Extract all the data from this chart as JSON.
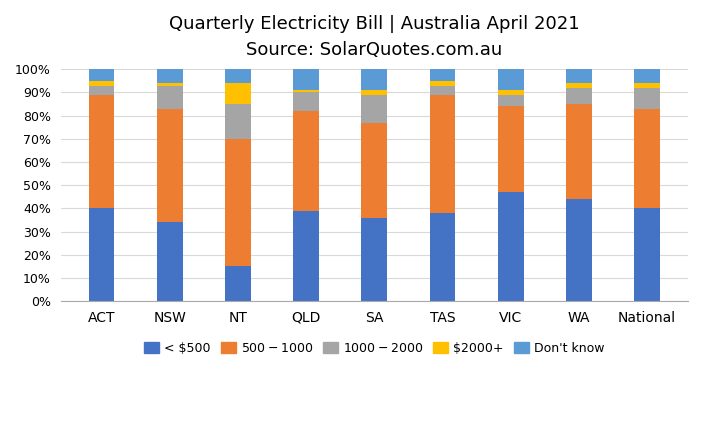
{
  "categories": [
    "ACT",
    "NSW",
    "NT",
    "QLD",
    "SA",
    "TAS",
    "VIC",
    "WA",
    "National"
  ],
  "series": {
    "< $500": [
      40,
      34,
      15,
      39,
      36,
      38,
      47,
      44,
      40
    ],
    "$500 - $1000": [
      49,
      49,
      55,
      43,
      41,
      51,
      37,
      41,
      43
    ],
    "$1000- $2000": [
      4,
      10,
      15,
      8,
      12,
      4,
      5,
      7,
      9
    ],
    "$2000+": [
      2,
      1,
      9,
      1,
      2,
      2,
      2,
      2,
      2
    ],
    "Don't know": [
      5,
      6,
      6,
      9,
      9,
      5,
      9,
      6,
      6
    ]
  },
  "colors": {
    "< $500": "#4472C4",
    "$500 - $1000": "#ED7D31",
    "$1000- $2000": "#A5A5A5",
    "$2000+": "#FFC000",
    "Don't know": "#5B9BD5"
  },
  "title_line1": "Quarterly Electricity Bill | Australia April 2021",
  "title_line2": "Source: SolarQuotes.com.au",
  "title_fontsize": 13,
  "subtitle_fontsize": 11,
  "ylim": [
    0,
    100
  ],
  "yticks": [
    0,
    10,
    20,
    30,
    40,
    50,
    60,
    70,
    80,
    90,
    100
  ],
  "background_color": "#FFFFFF",
  "grid_color": "#D9D9D9",
  "bar_width": 0.38
}
